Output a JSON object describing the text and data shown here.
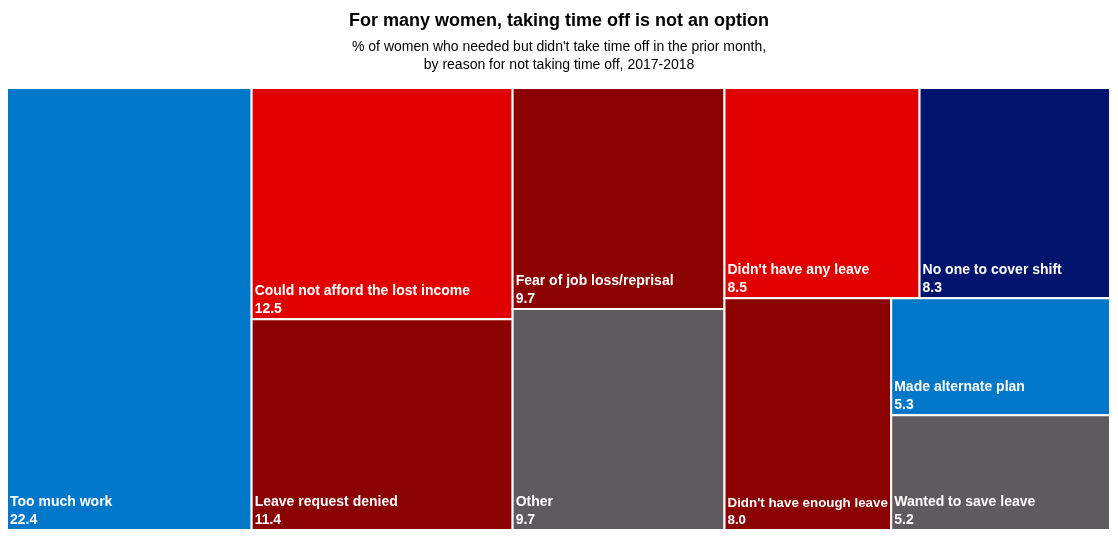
{
  "chart_data": {
    "type": "other",
    "title": "For many women, taking time off is not an option",
    "subtitle": "% of women who needed but didn't take time off in the prior month,\nby reason for not taking time off, 2017-2018",
    "categories": [
      "Too much work",
      "Could not afford the lost income",
      "Leave request denied",
      "Fear of job loss/reprisal",
      "Other",
      "Didn't have any leave",
      "No one to cover shift",
      "Didn't have enough leave",
      "Made alternate plan",
      "Wanted to save leave"
    ],
    "values": [
      22.4,
      12.5,
      11.4,
      9.7,
      9.7,
      8.5,
      8.3,
      8.0,
      5.3,
      5.2
    ],
    "value_labels": [
      "22.4",
      "12.5",
      "11.4",
      "9.7",
      "9.7",
      "8.5",
      "8.3",
      "8.0",
      "5.3",
      "5.2"
    ],
    "colors": [
      "#0077c8",
      "#e00000",
      "#8b0000",
      "#8b0000",
      "#5f5a5e",
      "#e00000",
      "#00146e",
      "#8b0000",
      "#0077c8",
      "#5f5a5e"
    ]
  }
}
